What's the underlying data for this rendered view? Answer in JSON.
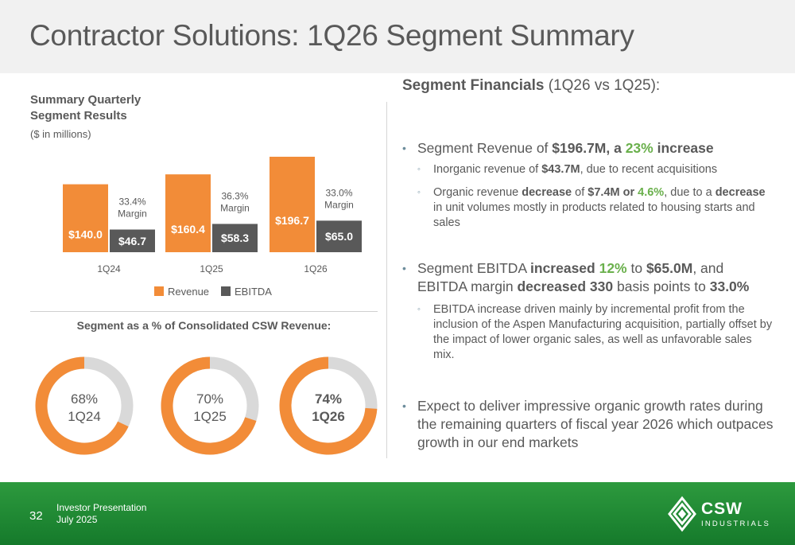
{
  "header": {
    "title": "Contractor Solutions: 1Q26 Segment Summary"
  },
  "left": {
    "title_line1": "Summary Quarterly",
    "title_line2": "Segment Results",
    "subtitle": "($ in millions)"
  },
  "chart_data": [
    {
      "type": "bar",
      "categories": [
        "1Q24",
        "1Q25",
        "1Q26"
      ],
      "series": [
        {
          "name": "Revenue",
          "values": [
            140.0,
            160.4,
            196.7
          ],
          "labels": [
            "$140.0",
            "$160.4",
            "$196.7"
          ],
          "color": "#f28c38"
        },
        {
          "name": "EBITDA",
          "values": [
            46.7,
            58.3,
            65.0
          ],
          "labels": [
            "$46.7",
            "$58.3",
            "$65.0"
          ],
          "color": "#595959"
        }
      ],
      "annotations": [
        {
          "category": "1Q24",
          "line1": "33.4%",
          "line2": "Margin"
        },
        {
          "category": "1Q25",
          "line1": "36.3%",
          "line2": "Margin"
        },
        {
          "category": "1Q26",
          "line1": "33.0%",
          "line2": "Margin"
        }
      ],
      "ylim": [
        0,
        200
      ],
      "legend": "bottom-center"
    },
    {
      "type": "pie",
      "title": "Segment as a % of Consolidated CSW Revenue:",
      "items": [
        {
          "label": "1Q24",
          "value": 68,
          "text": "68%",
          "bold": false
        },
        {
          "label": "1Q25",
          "value": 70,
          "text": "70%",
          "bold": false
        },
        {
          "label": "1Q26",
          "value": 74,
          "text": "74%",
          "bold": true
        }
      ],
      "colors": {
        "fill": "#f28c38",
        "rest": "#d9d9d9"
      }
    }
  ],
  "right": {
    "title_bold": "Segment Financials",
    "title_rest": "(1Q26 vs 1Q25):",
    "b1": {
      "t1": "Segment Revenue of ",
      "t2": "$196.7M, a ",
      "t3": "23%",
      "t4": " increase"
    },
    "b1s1": {
      "t1": "Inorganic revenue of ",
      "t2": "$43.7M",
      "t3": ", due to recent acquisitions"
    },
    "b1s2": {
      "t1": "Organic revenue ",
      "t2": "decrease",
      "t3": " of ",
      "t4": "$7.4M or ",
      "t5": "4.6%",
      "t6": ", due to a ",
      "t7": "decrease",
      "t8": " in unit volumes mostly in products related to housing starts and sales"
    },
    "b2": {
      "t1": "Segment EBITDA ",
      "t2": "increased ",
      "t3": "12%",
      "t4": " to ",
      "t5": "$65.0M",
      "t6": ", and EBITDA margin ",
      "t7": "decreased 330",
      "t8": " basis points to ",
      "t9": "33.0%"
    },
    "b2s1": "EBITDA increase driven mainly by incremental profit from the inclusion of the Aspen Manufacturing acquisition, partially offset by the impact of lower organic sales, as well as unfavorable sales mix.",
    "b3": "Expect to deliver impressive organic growth rates during the remaining quarters of fiscal year 2026 which outpaces growth in our end markets"
  },
  "footer": {
    "page_number": "32",
    "line1": "Investor Presentation",
    "line2": "July 2025",
    "logo_name": "CSW",
    "logo_sub": "INDUSTRIALS"
  }
}
